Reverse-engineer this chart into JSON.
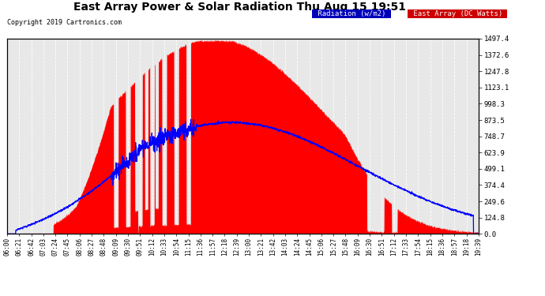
{
  "title": "East Array Power & Solar Radiation Thu Aug 15 19:51",
  "copyright": "Copyright 2019 Cartronics.com",
  "legend_labels": [
    "Radiation (w/m2)",
    "East Array (DC Watts)"
  ],
  "legend_colors_bg": [
    "#0000cc",
    "#cc0000"
  ],
  "yticks": [
    0.0,
    124.8,
    249.6,
    374.4,
    499.1,
    623.9,
    748.7,
    873.5,
    998.3,
    1123.1,
    1247.8,
    1372.6,
    1497.4
  ],
  "ymax": 1497.4,
  "ymin": 0.0,
  "bg_color": "#ffffff",
  "plot_bg_color": "#e8e8e8",
  "grid_color": "#ffffff",
  "area_color": "#ff0000",
  "line_color": "#0000ff",
  "xtick_labels": [
    "06:00",
    "06:21",
    "06:42",
    "07:03",
    "07:24",
    "07:45",
    "08:06",
    "08:27",
    "08:48",
    "09:09",
    "09:30",
    "09:51",
    "10:12",
    "10:33",
    "10:54",
    "11:15",
    "11:36",
    "11:57",
    "12:18",
    "12:39",
    "13:00",
    "13:21",
    "13:42",
    "14:03",
    "14:24",
    "14:45",
    "15:06",
    "15:27",
    "15:48",
    "16:09",
    "16:30",
    "16:51",
    "17:12",
    "17:33",
    "17:54",
    "18:15",
    "18:36",
    "18:57",
    "19:18",
    "19:39"
  ]
}
